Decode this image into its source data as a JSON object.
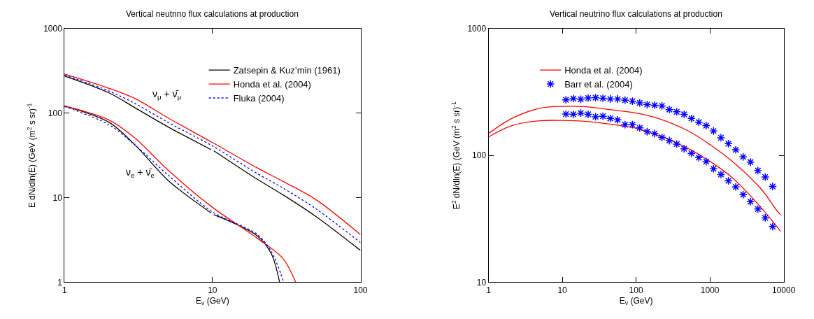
{
  "chart_data": [
    {
      "type": "line",
      "title": "Vertical neutrino flux calculations at production",
      "xlabel": "E$_{ν}$ (GeV)",
      "ylabel": "E dN/dln(E) (GeV (m$^{2}$ s sr)$^{-1}$",
      "log": "xy",
      "xlim": [
        1,
        100
      ],
      "xticks": [
        1,
        10,
        100
      ],
      "ylim": [
        1,
        1000
      ],
      "yticks": [
        1,
        10,
        100,
        1000
      ],
      "grid": false,
      "legend": "top right",
      "line_style": "solid",
      "annotations": [
        "ν$_{μ}$ + ν̄$_{μ}$",
        "ν$_{e}$ + ν̄$_{e}$"
      ],
      "series": [
        {
          "name": "Zatsepin & Kuz’min (1961)",
          "color": "#000000",
          "x": [
            1,
            2,
            3,
            5,
            9.8,
            10,
            10.2,
            20,
            30,
            50,
            100
          ],
          "values": [
            276,
            174,
            116,
            69,
            37,
            null,
            36,
            16.6,
            10.8,
            6.0,
            2.38
          ]
        },
        {
          "name": "Honda et al. (2004)",
          "color": "#ff0000",
          "x": [
            1,
            2,
            3,
            5,
            10,
            20,
            30,
            50,
            100
          ],
          "values": [
            290,
            197,
            149,
            88,
            45,
            22.6,
            15.6,
            9.5,
            3.66
          ]
        },
        {
          "name": "Fluka (2004)",
          "color": "#0000ff",
          "line_style": "dotted",
          "x": [
            1,
            2,
            3,
            5,
            10,
            20,
            30,
            50,
            100
          ],
          "values": [
            283,
            183,
            130,
            78,
            41,
            19.4,
            13,
            7.4,
            2.95
          ]
        },
        {
          "color": "#000000",
          "x": [
            1,
            2,
            3,
            5,
            9.8,
            10,
            10.2,
            20,
            25,
            28.4
          ],
          "values": [
            122,
            78,
            42,
            16.1,
            6.6,
            null,
            6.3,
            3.55,
            2.16,
            1
          ]
        },
        {
          "color": "#ff0000",
          "x": [
            1,
            2,
            3,
            5,
            10,
            20,
            30,
            36.5
          ],
          "values": [
            122,
            83,
            50.6,
            21.3,
            7.7,
            3.33,
            1.9,
            1
          ]
        },
        {
          "color": "#0000ff",
          "line_style": "dotted",
          "x": [
            1,
            2,
            3,
            5,
            10,
            20,
            25,
            30.3
          ],
          "values": [
            120,
            73,
            42,
            18.6,
            6.8,
            3.7,
            2.3,
            1
          ]
        }
      ]
    },
    {
      "type": "line",
      "title": "Vertical neutrino flux calculations at production",
      "xlabel": "E$_{ν}$ (GeV)",
      "ylabel": "E$^{2}$ dN/dln(E) (GeV (m$^{2}$ s sr)$^{-1}$",
      "log": "xy",
      "xlim": [
        1,
        10000
      ],
      "xticks": [
        1,
        10,
        100,
        1000,
        10000
      ],
      "ylim": [
        10,
        1000
      ],
      "yticks": [
        10,
        100,
        1000
      ],
      "grid": false,
      "legend": "top left",
      "line_style": "solid",
      "series": [
        {
          "name": "Honda et al. (2004)",
          "color": "#ff0000",
          "x": [
            1,
            2,
            5,
            10,
            20,
            50,
            100,
            200,
            500,
            1000,
            2000,
            5000,
            8000,
            9080
          ],
          "values": [
            149,
            194,
            236,
            244,
            243,
            228,
            216,
            196,
            157,
            122,
            90,
            54,
            37,
            34
          ]
        },
        {
          "color": "#ff0000",
          "x": [
            1,
            2,
            5,
            10,
            20,
            50,
            100,
            200,
            500,
            1000,
            2000,
            5000,
            9080
          ],
          "values": [
            140,
            171,
            188,
            189,
            186,
            175,
            164,
            144,
            114,
            90,
            67,
            38.5,
            25.2
          ]
        },
        {
          "name": "Barr et al. (2004)",
          "type": "scatter",
          "marker": "cross",
          "color": "#0000ff",
          "x": [
            11.2,
            14.1,
            17.8,
            22.4,
            28.2,
            35.5,
            44.7,
            56.2,
            70.8,
            89.1,
            112,
            141,
            178,
            224,
            282,
            355,
            447,
            562,
            708,
            891,
            1120,
            1410,
            1780,
            2240,
            2820,
            3550,
            4470,
            5620,
            7080
          ],
          "values": [
            275,
            281,
            278,
            284,
            286,
            283,
            279,
            279,
            273,
            268,
            260,
            252,
            249,
            246,
            230,
            221,
            211,
            196,
            183,
            172,
            156,
            138,
            124,
            111,
            97.5,
            88.7,
            75.9,
            67.6,
            57.0
          ]
        },
        {
          "type": "scatter",
          "marker": "cross",
          "color": "#0000ff",
          "x": [
            11.2,
            14.1,
            17.8,
            22.4,
            28.2,
            35.5,
            44.7,
            56.2,
            70.8,
            89.1,
            112,
            141,
            178,
            224,
            282,
            355,
            447,
            562,
            708,
            891,
            1120,
            1410,
            1780,
            2240,
            2820,
            3550,
            4470,
            5620,
            7080
          ],
          "values": [
            212,
            211,
            216,
            211,
            202,
            204,
            196,
            191,
            175,
            175,
            165,
            154,
            149,
            139,
            131,
            123,
            113,
            104,
            96.2,
            89.5,
            78.5,
            70.8,
            63.1,
            56.5,
            49.1,
            43.2,
            37.8,
            32.2,
            27.5
          ]
        }
      ]
    }
  ]
}
